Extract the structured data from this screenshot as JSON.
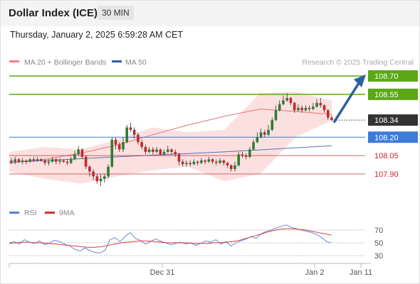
{
  "header": {
    "title": "Dollar Index (ICE)",
    "timeframe": "30 MIN",
    "timestamp": "Thursday, January 2, 2025 6:59:28 AM CET"
  },
  "chart_data": {
    "type": "candlestick",
    "legend": [
      "MA 20 + Bollinger Bands",
      "MA 50"
    ],
    "credit": "Research © 2025 Trading Central",
    "current_price": "108.34",
    "levels": [
      {
        "value": "108.70",
        "color": "#5aa816",
        "kind": "resistance"
      },
      {
        "value": "108.55",
        "color": "#5aa816",
        "kind": "resistance"
      },
      {
        "value": "108.20",
        "color": "#3d7bd9",
        "kind": "pivot"
      },
      {
        "value": "108.05",
        "color": "#c62828",
        "kind": "support"
      },
      {
        "value": "107.90",
        "color": "#c62828",
        "kind": "support"
      }
    ],
    "x_ticks": [
      "Dec 31",
      "Jan 2",
      "Jan 11"
    ],
    "price_candles": [
      [
        108.01,
        108.0,
        108.03,
        107.98
      ],
      [
        108.0,
        108.02,
        108.04,
        107.98
      ],
      [
        108.02,
        108.0,
        108.03,
        107.99
      ],
      [
        108.0,
        108.01,
        108.03,
        107.98
      ],
      [
        108.01,
        108.0,
        108.02,
        107.98
      ],
      [
        108.0,
        108.02,
        108.03,
        107.99
      ],
      [
        108.02,
        108.01,
        108.04,
        108.0
      ],
      [
        108.01,
        108.02,
        108.04,
        108.0
      ],
      [
        108.02,
        108.01,
        108.03,
        108.0
      ],
      [
        108.01,
        107.99,
        108.02,
        107.97
      ],
      [
        107.99,
        108.0,
        108.02,
        107.97
      ],
      [
        108.0,
        108.02,
        108.04,
        107.99
      ],
      [
        108.02,
        108.0,
        108.03,
        107.98
      ],
      [
        108.0,
        108.01,
        108.03,
        107.98
      ],
      [
        108.01,
        108.0,
        108.02,
        107.99
      ],
      [
        108.0,
        107.99,
        108.02,
        107.97
      ],
      [
        107.99,
        108.02,
        108.04,
        107.98
      ],
      [
        108.02,
        108.06,
        108.09,
        108.01
      ],
      [
        108.06,
        108.1,
        108.13,
        108.05
      ],
      [
        108.1,
        108.04,
        108.11,
        108.02
      ],
      [
        108.04,
        107.96,
        108.05,
        107.94
      ],
      [
        107.96,
        107.92,
        107.97,
        107.88
      ],
      [
        107.92,
        107.88,
        107.94,
        107.85
      ],
      [
        107.88,
        107.84,
        107.9,
        107.82
      ],
      [
        107.84,
        107.86,
        107.9,
        107.8
      ],
      [
        107.86,
        107.88,
        107.9,
        107.83
      ],
      [
        107.88,
        107.96,
        107.98,
        107.86
      ],
      [
        107.96,
        108.18,
        108.2,
        107.95
      ],
      [
        108.18,
        108.14,
        108.2,
        108.1
      ],
      [
        108.14,
        108.1,
        108.16,
        108.08
      ],
      [
        108.1,
        108.16,
        108.2,
        108.08
      ],
      [
        108.16,
        108.28,
        108.3,
        108.15
      ],
      [
        108.28,
        108.26,
        108.32,
        108.24
      ],
      [
        108.26,
        108.22,
        108.28,
        108.19
      ],
      [
        108.22,
        108.16,
        108.24,
        108.14
      ],
      [
        108.16,
        108.12,
        108.18,
        108.1
      ],
      [
        108.12,
        108.08,
        108.14,
        108.06
      ],
      [
        108.08,
        108.1,
        108.12,
        108.07
      ],
      [
        108.1,
        108.08,
        108.12,
        108.06
      ],
      [
        108.08,
        108.1,
        108.12,
        108.07
      ],
      [
        108.1,
        108.06,
        108.11,
        108.05
      ],
      [
        108.06,
        108.08,
        108.1,
        108.05
      ],
      [
        108.08,
        108.1,
        108.13,
        108.07
      ],
      [
        108.1,
        108.08,
        108.11,
        108.06
      ],
      [
        108.08,
        108.06,
        108.1,
        108.04
      ],
      [
        108.06,
        108.0,
        108.07,
        107.97
      ],
      [
        108.0,
        107.98,
        108.02,
        107.96
      ],
      [
        107.98,
        107.99,
        108.01,
        107.96
      ],
      [
        107.99,
        107.98,
        108.01,
        107.96
      ],
      [
        107.98,
        108.0,
        108.02,
        107.97
      ],
      [
        108.0,
        107.99,
        108.01,
        107.97
      ],
      [
        107.99,
        108.01,
        108.03,
        107.98
      ],
      [
        108.01,
        108.0,
        108.02,
        107.98
      ],
      [
        108.0,
        108.02,
        108.04,
        107.99
      ],
      [
        108.02,
        108.0,
        108.03,
        107.98
      ],
      [
        108.0,
        107.99,
        108.02,
        107.97
      ],
      [
        107.99,
        108.01,
        108.03,
        107.98
      ],
      [
        108.01,
        107.99,
        108.02,
        107.97
      ],
      [
        107.99,
        107.97,
        108.0,
        107.95
      ],
      [
        107.97,
        107.94,
        107.98,
        107.92
      ],
      [
        107.94,
        107.97,
        108.0,
        107.92
      ],
      [
        107.97,
        108.06,
        108.08,
        107.96
      ],
      [
        108.06,
        108.05,
        108.08,
        108.03
      ],
      [
        108.05,
        108.04,
        108.07,
        108.02
      ],
      [
        108.04,
        108.1,
        108.12,
        108.03
      ],
      [
        108.1,
        108.16,
        108.18,
        108.09
      ],
      [
        108.16,
        108.2,
        108.24,
        108.15
      ],
      [
        108.2,
        108.24,
        108.27,
        108.19
      ],
      [
        108.24,
        108.22,
        108.26,
        108.2
      ],
      [
        108.22,
        108.26,
        108.3,
        108.21
      ],
      [
        108.26,
        108.34,
        108.36,
        108.25
      ],
      [
        108.34,
        108.42,
        108.46,
        108.33
      ],
      [
        108.42,
        108.47,
        108.5,
        108.41
      ],
      [
        108.47,
        108.5,
        108.54,
        108.46
      ],
      [
        108.5,
        108.52,
        108.56,
        108.49
      ],
      [
        108.52,
        108.48,
        108.53,
        108.46
      ],
      [
        108.48,
        108.42,
        108.49,
        108.4
      ],
      [
        108.42,
        108.44,
        108.47,
        108.41
      ],
      [
        108.44,
        108.42,
        108.46,
        108.4
      ],
      [
        108.42,
        108.44,
        108.46,
        108.41
      ],
      [
        108.44,
        108.43,
        108.46,
        108.41
      ],
      [
        108.43,
        108.45,
        108.48,
        108.42
      ],
      [
        108.45,
        108.48,
        108.51,
        108.44
      ],
      [
        108.48,
        108.46,
        108.52,
        108.44
      ],
      [
        108.46,
        108.42,
        108.47,
        108.4
      ],
      [
        108.42,
        108.36,
        108.43,
        108.34
      ],
      [
        108.36,
        108.34,
        108.38,
        108.33
      ]
    ],
    "series_curves": {
      "MA 20": [
        [
          107.98,
          108.0
        ],
        [
          108.0,
          108.04
        ],
        [
          108.02,
          108.12
        ],
        [
          108.05,
          108.22
        ],
        [
          108.1,
          108.34
        ],
        [
          108.2,
          108.4
        ],
        [
          108.3,
          108.44
        ],
        [
          108.4,
          108.46
        ],
        [
          108.42,
          108.4
        ],
        [
          108.43,
          108.34
        ]
      ],
      "MA 50": [
        [
          107.97,
          108.02
        ],
        [
          108.0,
          108.08
        ],
        [
          108.04,
          108.12
        ],
        [
          108.06,
          108.2
        ]
      ],
      "bollinger_upper": [
        108.08,
        108.12,
        108.1,
        108.18,
        108.28,
        108.24,
        108.26,
        108.56,
        108.57,
        108.5
      ],
      "bollinger_lower": [
        107.92,
        107.86,
        107.82,
        107.88,
        107.93,
        107.96,
        107.84,
        107.9,
        108.2,
        108.34
      ]
    },
    "rsi": {
      "legend": [
        "RSI",
        "9MA"
      ],
      "ticks": [
        "70",
        "50",
        "30"
      ],
      "ylim": [
        20,
        80
      ],
      "rsi_values": [
        50,
        52,
        48,
        55,
        51,
        49,
        53,
        47,
        50,
        54,
        52,
        48,
        45,
        40,
        37,
        42,
        38,
        35,
        34,
        38,
        55,
        58,
        52,
        60,
        66,
        57,
        54,
        48,
        52,
        56,
        53,
        50,
        47,
        49,
        51,
        48,
        50,
        46,
        49,
        53,
        51,
        55,
        48,
        52,
        45,
        50,
        53,
        56,
        60,
        57,
        64,
        68,
        70,
        73,
        76,
        78,
        74,
        72,
        70,
        68,
        66,
        63,
        58,
        52,
        50
      ],
      "ma9_values": [
        49,
        50,
        51,
        51,
        50,
        50,
        49,
        48,
        47,
        46,
        45,
        44,
        43,
        43,
        44,
        46,
        48,
        50,
        51,
        52,
        53,
        53,
        52,
        51,
        50,
        50,
        50,
        50,
        49,
        49,
        49,
        50,
        50,
        51,
        52,
        54,
        57,
        60,
        63,
        66,
        69,
        71,
        72,
        72,
        71,
        70,
        68,
        66,
        64,
        62
      ]
    }
  }
}
